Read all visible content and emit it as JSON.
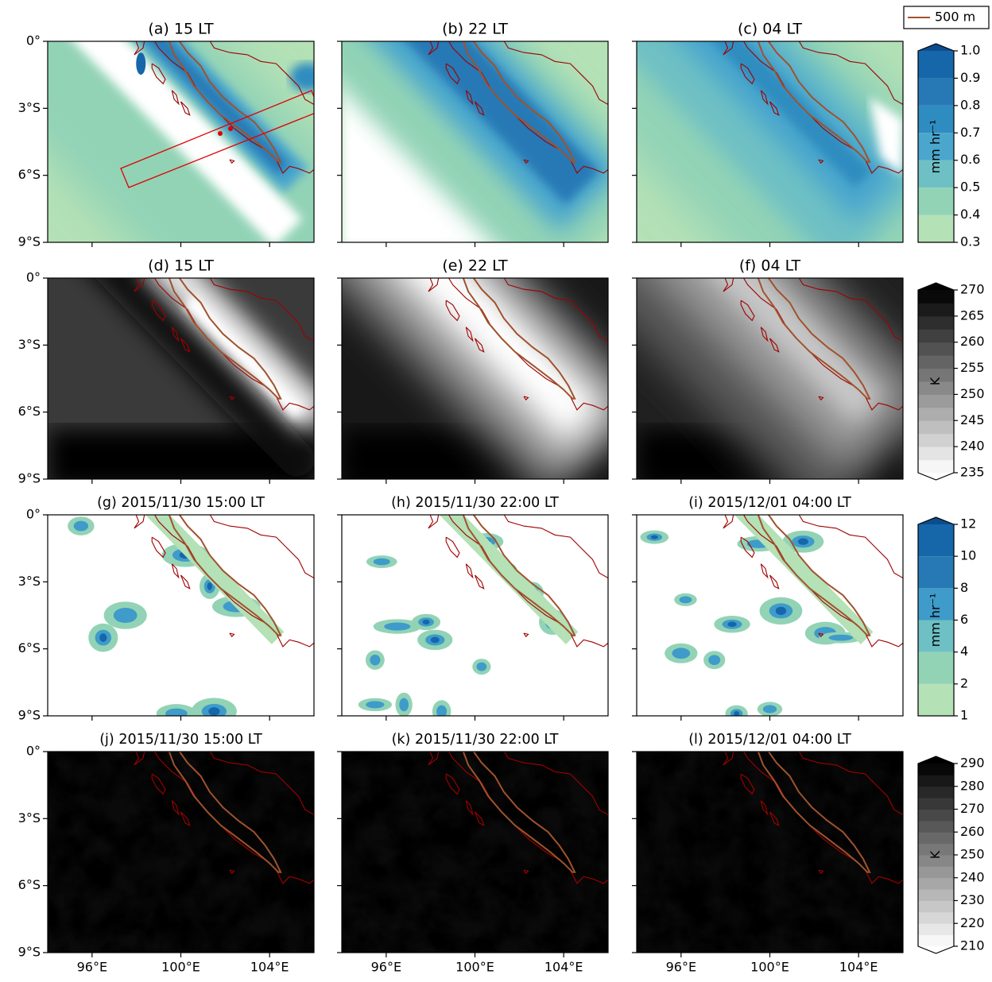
{
  "legend": {
    "label": "500 m",
    "color": "#a0522d"
  },
  "coastline_color": "#a00000",
  "lon_range": [
    94,
    106
  ],
  "lat_range": [
    0,
    -9
  ],
  "lat_ticks": [
    {
      "value": 0,
      "label": "0°"
    },
    {
      "value": -3,
      "label": "3°S"
    },
    {
      "value": -6,
      "label": "6°S"
    },
    {
      "value": -9,
      "label": "9°S"
    }
  ],
  "lon_ticks": [
    {
      "value": 96,
      "label": "96°E"
    },
    {
      "value": 100,
      "label": "100°E"
    },
    {
      "value": 104,
      "label": "104°E"
    }
  ],
  "panels": [
    {
      "title": "(a) 15 LT"
    },
    {
      "title": "(b) 22 LT"
    },
    {
      "title": "(c) 04 LT"
    },
    {
      "title": "(d) 15 LT"
    },
    {
      "title": "(e) 22 LT"
    },
    {
      "title": "(f) 04 LT"
    },
    {
      "title": "(g) 2015/11/30 15:00 LT"
    },
    {
      "title": "(h) 2015/11/30 22:00 LT"
    },
    {
      "title": "(i) 2015/12/01 04:00 LT"
    },
    {
      "title": "(j) 2015/11/30 15:00 LT"
    },
    {
      "title": "(k) 2015/11/30 22:00 LT"
    },
    {
      "title": "(l) 2015/12/01 04:00 LT"
    }
  ],
  "colorbars": [
    {
      "label": "mm hr⁻¹",
      "ticks": [
        0.3,
        0.4,
        0.5,
        0.6,
        0.7,
        0.8,
        0.9,
        {
          "value": 1,
          "label": "1.0"
        }
      ],
      "colors": [
        "#b4e1b6",
        "#92d3b6",
        "#6ec0c4",
        "#4aa6cd",
        "#2f8cc0",
        "#2779b5",
        "#1666aa"
      ],
      "extend_top": "#0b4d8c"
    },
    {
      "label": "K",
      "ticks": [
        235,
        240,
        245,
        250,
        255,
        260,
        265,
        270
      ],
      "gradient": [
        "#ffffff",
        "#000000"
      ],
      "extend_top": "#000000",
      "extend_bottom": "#ffffff"
    },
    {
      "label": "mm hr⁻¹",
      "ticks": [
        1,
        2,
        4,
        6,
        8,
        10,
        12
      ],
      "colors": [
        "#b4e1b6",
        "#92d3b6",
        "#6ec0c4",
        "#3f9bc9",
        "#2779b5",
        "#1666aa"
      ],
      "extend_top": "#0b4d8c"
    },
    {
      "label": "K",
      "ticks": [
        210,
        220,
        230,
        240,
        250,
        260,
        270,
        280,
        290
      ],
      "gradient": [
        "#ffffff",
        "#000000"
      ],
      "extend_top": "#000000",
      "extend_bottom": "#ffffff"
    }
  ]
}
